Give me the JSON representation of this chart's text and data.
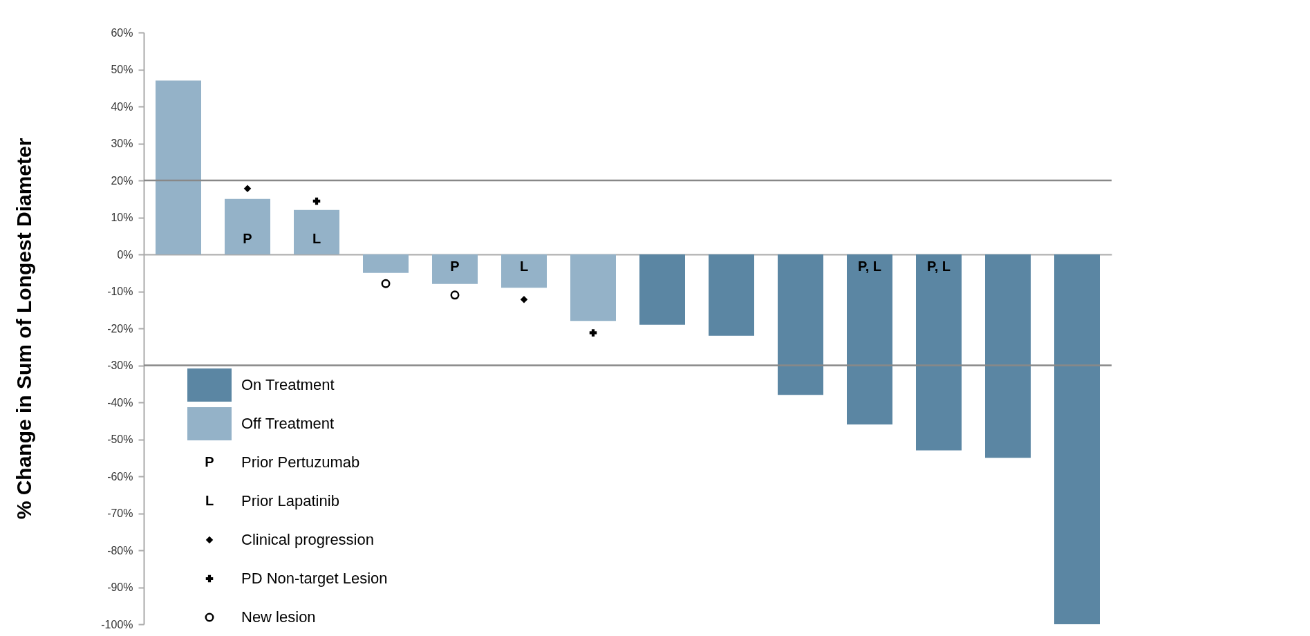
{
  "chart_data": {
    "type": "bar",
    "ylabel": "% Change in Sum of Longest Diameter",
    "categories": [
      null,
      null,
      null,
      null,
      null,
      null,
      null,
      null,
      null,
      null,
      null,
      null,
      null,
      null
    ],
    "tick_labels": "y",
    "ylim": [
      -100,
      60
    ],
    "yticks": [
      {
        "value": 60,
        "label": "60%"
      },
      {
        "value": 50,
        "label": "50%"
      },
      {
        "value": 40,
        "label": "40%"
      },
      {
        "value": 30,
        "label": "30%"
      },
      {
        "value": 20,
        "label": "20%"
      },
      {
        "value": 10,
        "label": "10%"
      },
      {
        "value": 0,
        "label": "0%"
      },
      {
        "value": -10,
        "label": "-10%"
      },
      {
        "value": -20,
        "label": "-20%"
      },
      {
        "value": -30,
        "label": "-30%"
      },
      {
        "value": -40,
        "label": "-40%"
      },
      {
        "value": -50,
        "label": "-50%"
      },
      {
        "value": -60,
        "label": "-60%"
      },
      {
        "value": -70,
        "label": "-70%"
      },
      {
        "value": -80,
        "label": "-80%"
      },
      {
        "value": -90,
        "label": "-90%"
      },
      {
        "value": -100,
        "label": "-100%"
      }
    ],
    "series": [
      {
        "name": "On Treatment",
        "color": "#5b86a3",
        "values": [
          null,
          null,
          null,
          null,
          null,
          null,
          null,
          -19,
          -22,
          -38,
          -46,
          -53,
          -55,
          -100
        ],
        "value_labels": [
          null,
          null,
          null,
          null,
          null,
          null,
          null,
          null,
          null,
          null,
          "P, L",
          "P, L",
          null,
          null
        ]
      },
      {
        "name": "Off Treatment",
        "color": "#94b2c8",
        "values": [
          47,
          15,
          12,
          -5,
          -8,
          -9,
          -18,
          null,
          null,
          null,
          null,
          null,
          null,
          null
        ],
        "value_labels": [
          null,
          "P",
          "L",
          null,
          "P",
          "L",
          null,
          null,
          null,
          null,
          null,
          null,
          null,
          null
        ]
      },
      {
        "name": "Clinical progression",
        "type": "scatter",
        "marker": "diamond",
        "color": "#000000",
        "values": [
          null,
          17.8,
          null,
          null,
          null,
          -12.2,
          null,
          null,
          null,
          null,
          null,
          null,
          null,
          null
        ]
      },
      {
        "name": "PD Non-target Lesion",
        "type": "scatter",
        "marker": "cross",
        "color": "#000000",
        "values": [
          null,
          null,
          14.4,
          null,
          null,
          null,
          -21.2,
          null,
          null,
          null,
          null,
          null,
          null,
          null
        ]
      },
      {
        "name": "New lesion",
        "type": "scatter",
        "marker": "circle",
        "color": "#000000",
        "values": [
          null,
          null,
          null,
          -7.9,
          -11,
          null,
          null,
          null,
          null,
          null,
          null,
          null,
          null,
          null
        ]
      }
    ],
    "annotations": [
      "P",
      "Prior Pertuzumab",
      "L",
      "Prior Lapatinib"
    ],
    "ref_lines": [
      {
        "axis": "y",
        "value": 20,
        "color": "#888888"
      },
      {
        "axis": "y",
        "value": -30,
        "color": "#888888"
      }
    ],
    "legend": "bottom left",
    "grid": false
  }
}
